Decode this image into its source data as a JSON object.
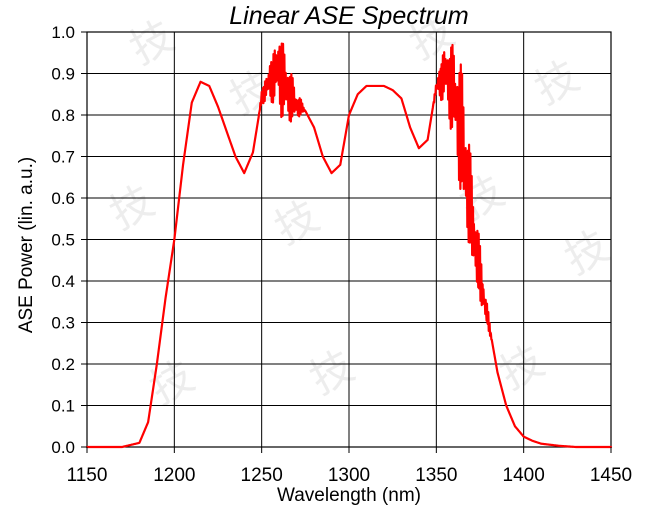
{
  "chart_data": {
    "type": "line",
    "title": "Linear ASE Spectrum",
    "xlabel": "Wavelength (nm)",
    "ylabel": "ASE Power (lin. a.u.)",
    "xlim": [
      1150,
      1450
    ],
    "ylim": [
      0.0,
      1.0
    ],
    "x_ticks": [
      1150,
      1200,
      1250,
      1300,
      1350,
      1400,
      1450
    ],
    "x_tick_labels": [
      "1150",
      "1200",
      "1250",
      "1300",
      "1350",
      "1400",
      "1450"
    ],
    "y_ticks": [
      0.0,
      0.1,
      0.2,
      0.3,
      0.4,
      0.5,
      0.6,
      0.7,
      0.8,
      0.9,
      1.0
    ],
    "y_tick_labels": [
      "0.0",
      "0.1",
      "0.2",
      "0.3",
      "0.4",
      "0.5",
      "0.6",
      "0.7",
      "0.8",
      "0.9",
      "1.0"
    ],
    "grid": true,
    "legend": "none",
    "series": [
      {
        "color": "#ff0000",
        "x": [
          1150,
          1170,
          1180,
          1185,
          1190,
          1195,
          1200,
          1205,
          1210,
          1215,
          1220,
          1225,
          1230,
          1235,
          1240,
          1245,
          1250,
          1255,
          1260,
          1265,
          1270,
          1275,
          1280,
          1285,
          1290,
          1295,
          1300,
          1305,
          1310,
          1315,
          1320,
          1325,
          1330,
          1335,
          1340,
          1345,
          1350,
          1355,
          1360,
          1365,
          1370,
          1375,
          1380,
          1385,
          1390,
          1395,
          1400,
          1405,
          1410,
          1420,
          1430,
          1440,
          1450
        ],
        "y": [
          0.0,
          0.0,
          0.01,
          0.06,
          0.2,
          0.36,
          0.5,
          0.68,
          0.83,
          0.88,
          0.87,
          0.82,
          0.76,
          0.7,
          0.66,
          0.71,
          0.84,
          0.88,
          0.92,
          0.87,
          0.83,
          0.81,
          0.77,
          0.7,
          0.66,
          0.68,
          0.8,
          0.85,
          0.87,
          0.87,
          0.87,
          0.86,
          0.84,
          0.77,
          0.72,
          0.74,
          0.87,
          0.9,
          0.83,
          0.7,
          0.55,
          0.42,
          0.3,
          0.18,
          0.1,
          0.05,
          0.025,
          0.015,
          0.008,
          0.003,
          0.0,
          0.0,
          0.0
        ],
        "ripple": [
          {
            "range": [
              1248,
              1275
            ],
            "amplitude": 0.07
          },
          {
            "range": [
              1348,
              1382
            ],
            "amplitude": 0.12
          }
        ]
      }
    ]
  },
  "watermark": {
    "text": "技"
  }
}
